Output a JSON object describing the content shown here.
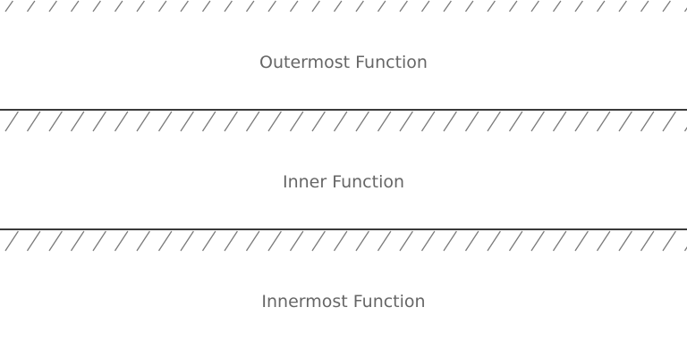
{
  "layers": [
    {
      "label": "Outermost Function"
    },
    {
      "label": "Inner Function"
    },
    {
      "label": "Innermost Function"
    }
  ],
  "colors": {
    "background": "#ffffff",
    "divider": "#3a3a3a",
    "hatch": "#7a7a7a",
    "text": "#666666"
  }
}
